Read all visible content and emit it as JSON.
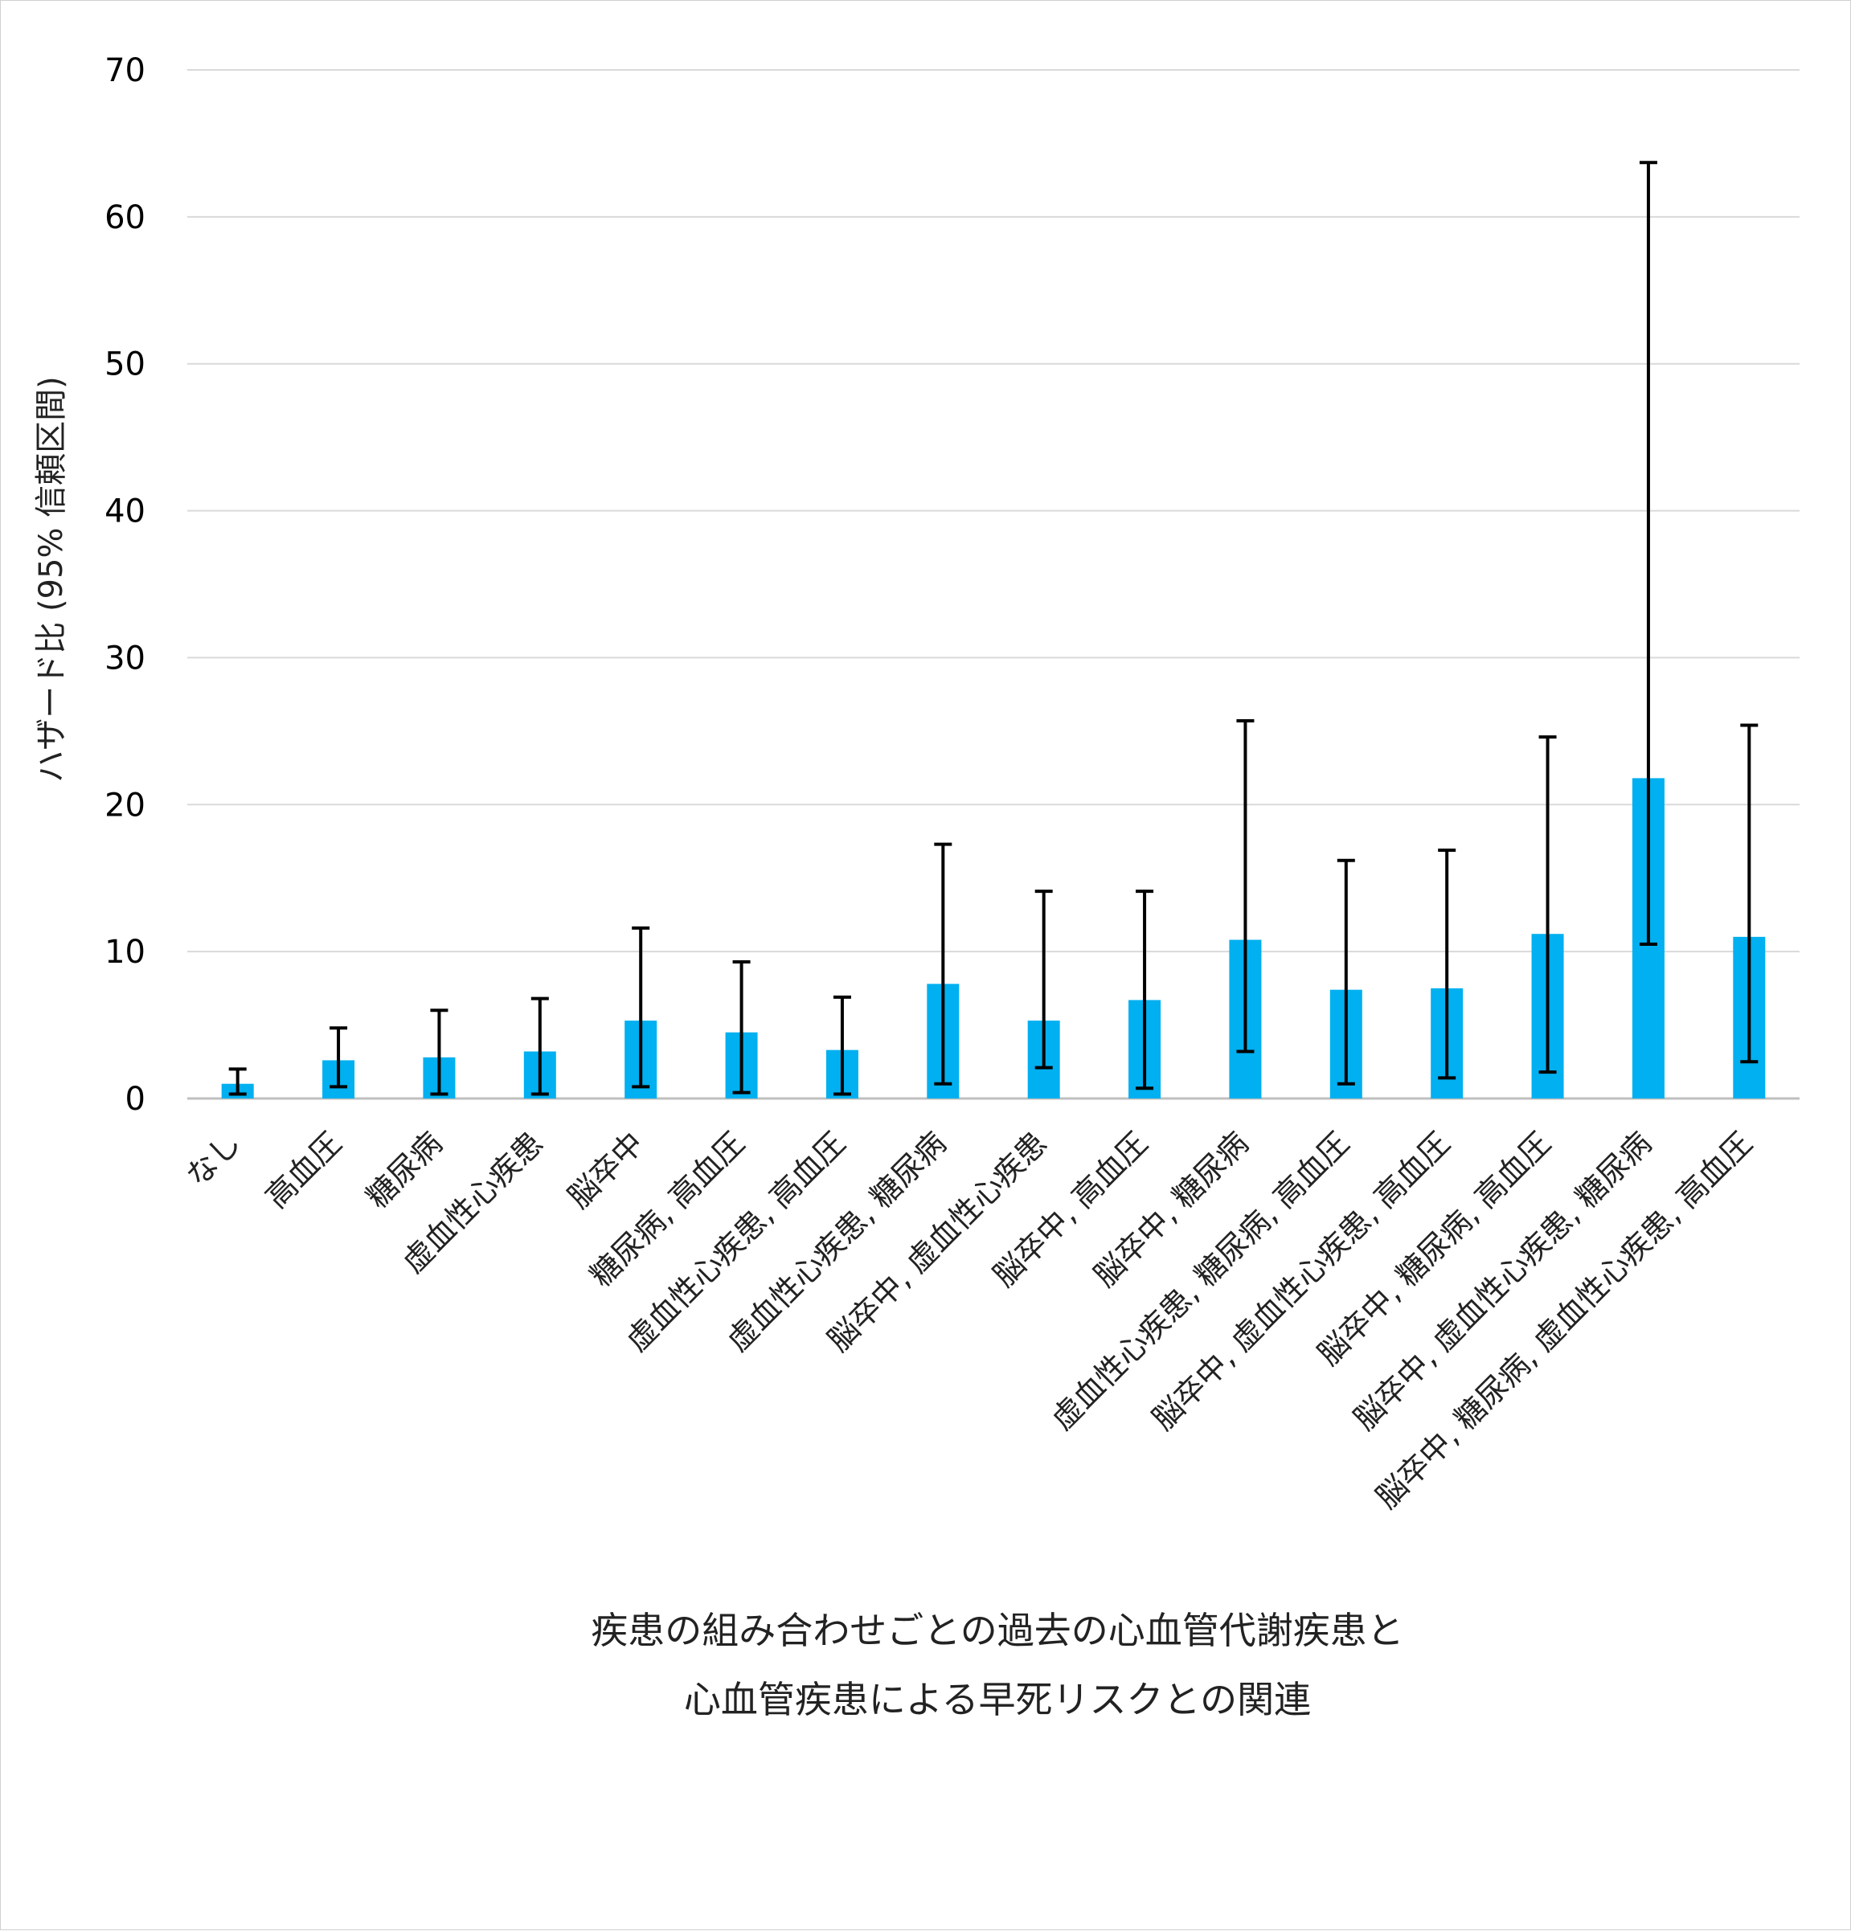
{
  "chart_data": {
    "type": "bar",
    "title": "",
    "ylabel": "ハザード比 (95% 信頼区間)",
    "xlabel_lines": [
      "疾患の組み合わせごとの過去の心血管代謝疾患と",
      "心血管疾患による早死リスクとの関連"
    ],
    "ylim": [
      0,
      70
    ],
    "yticks": [
      0,
      10,
      20,
      30,
      40,
      50,
      60,
      70
    ],
    "grid": true,
    "bar_color": "#00b0f0",
    "categories": [
      "なし",
      "高血圧",
      "糖尿病",
      "虚血性心疾患",
      "脳卒中",
      "糖尿病, 高血圧",
      "虚血性心疾患, 高血圧",
      "虚血性心疾患, 糖尿病",
      "脳卒中, 虚血性心疾患",
      "脳卒中, 高血圧",
      "脳卒中, 糖尿病",
      "虚血性心疾患, 糖尿病, 高血圧",
      "脳卒中, 虚血性心疾患, 高血圧",
      "脳卒中, 糖尿病, 高血圧",
      "脳卒中, 虚血性心疾患, 糖尿病",
      "脳卒中, 糖尿病, 虚血性心疾患, 高血圧"
    ],
    "values": [
      1.0,
      2.6,
      2.8,
      3.2,
      5.3,
      4.5,
      3.3,
      7.8,
      5.3,
      6.7,
      10.8,
      7.4,
      7.5,
      11.2,
      21.8,
      11.0
    ],
    "ci_lower": [
      0.3,
      0.8,
      0.3,
      0.3,
      0.8,
      0.4,
      0.3,
      1.0,
      2.1,
      0.7,
      3.2,
      1.0,
      1.4,
      1.8,
      10.5,
      2.5
    ],
    "ci_upper": [
      2.0,
      4.8,
      6.0,
      6.8,
      11.6,
      9.3,
      6.9,
      17.3,
      14.1,
      14.1,
      25.7,
      16.2,
      16.9,
      24.6,
      63.7,
      25.4
    ]
  }
}
